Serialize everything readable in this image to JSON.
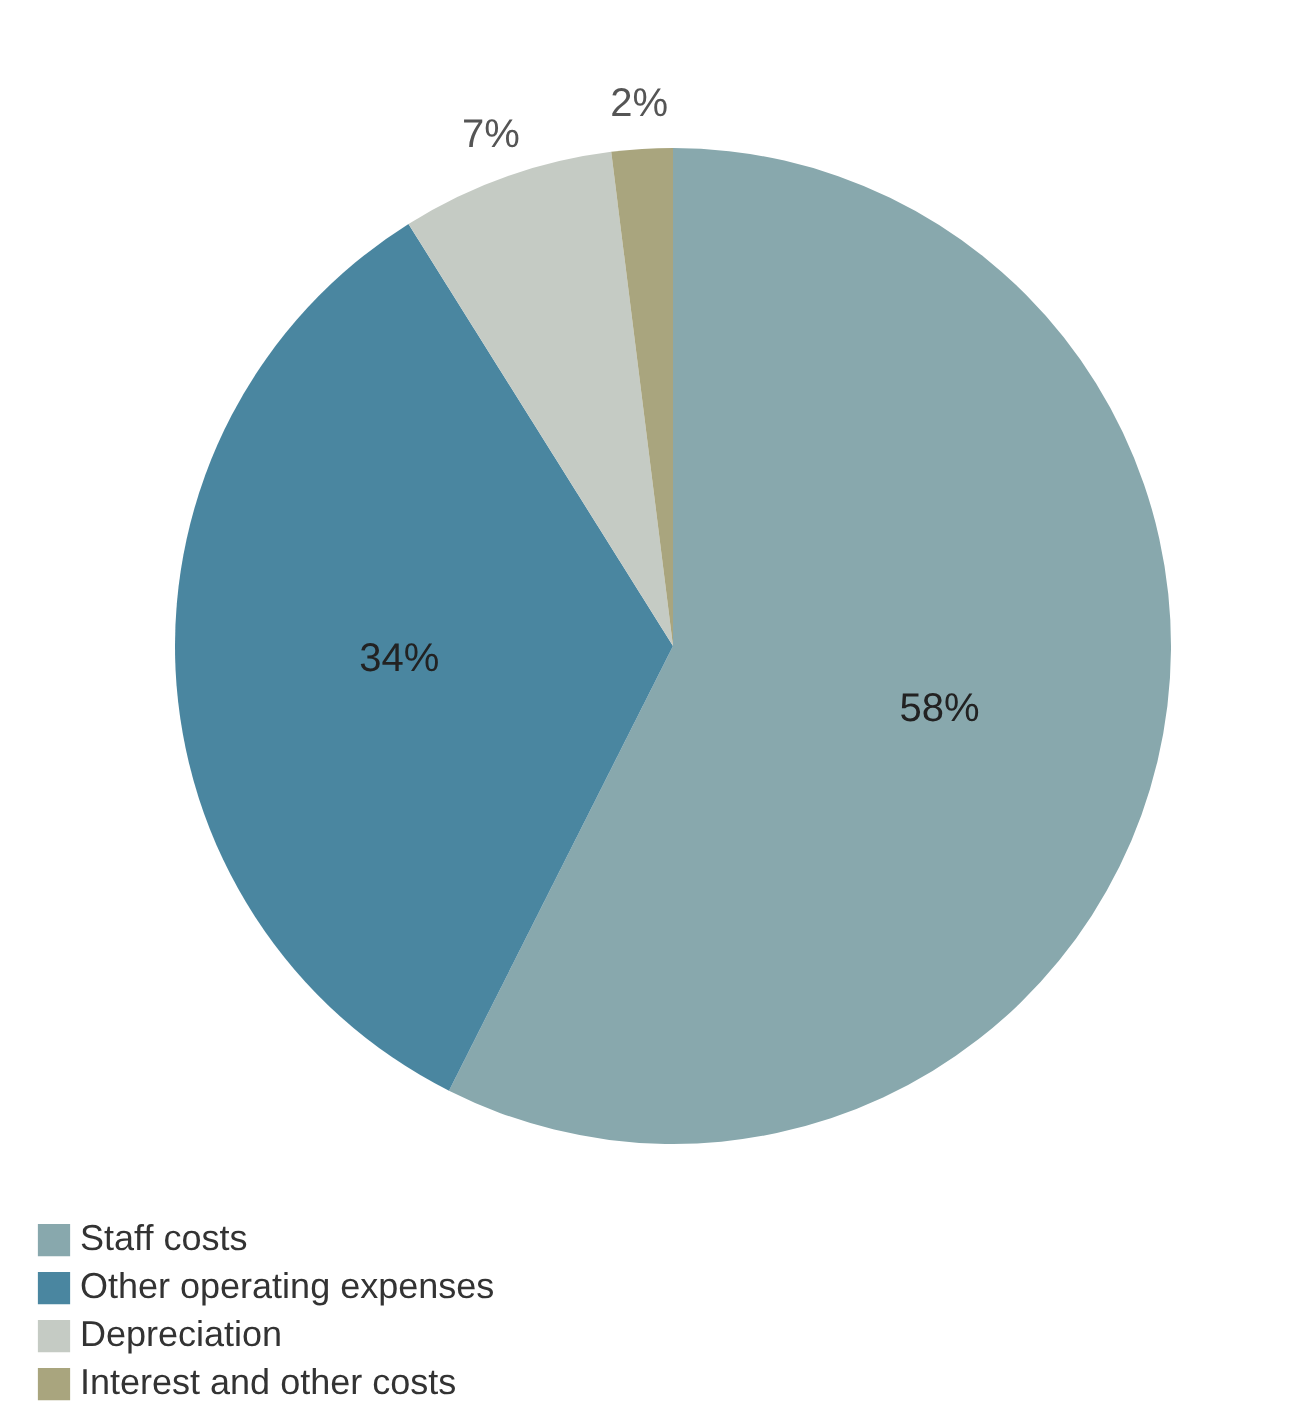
{
  "chart_data": {
    "type": "pie",
    "categories": [
      "Staff costs",
      "Other operating expenses",
      "Depreciation",
      "Interest and other costs"
    ],
    "values": [
      58,
      34,
      7,
      2
    ],
    "colors": [
      "#88a8ad",
      "#4a86a0",
      "#c5cbc4",
      "#a9a57e"
    ],
    "value_labels": [
      "58%",
      "34%",
      "7%",
      "2%"
    ],
    "legend": "bottom left"
  }
}
